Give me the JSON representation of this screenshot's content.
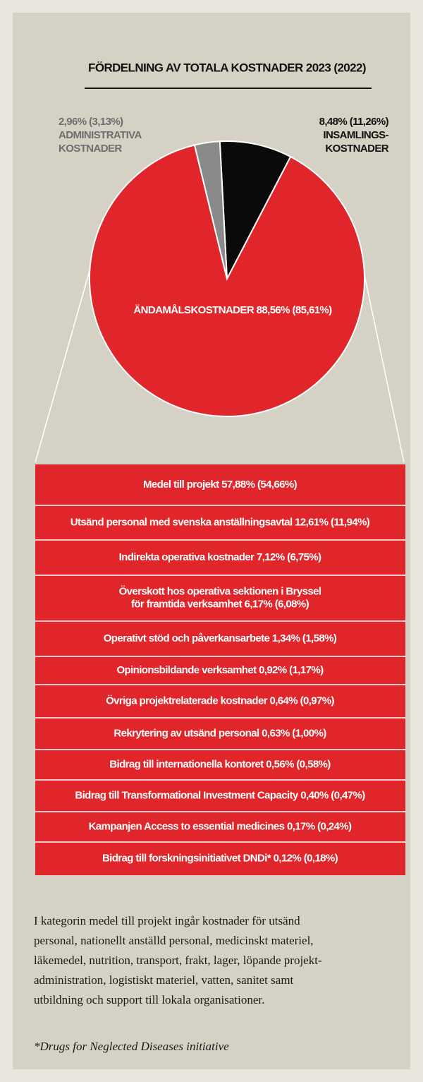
{
  "chart_data": {
    "type": "pie",
    "title": "FÖRDELNING AV TOTALA KOSTNADER 2023 (2022)",
    "categories": [
      [
        "INSAMLINGS-",
        "KOSTNADER"
      ],
      [
        "ÄNDAMÅLSKOSTNADER"
      ],
      [
        "ADMINISTRATIVA",
        "KOSTNADER"
      ]
    ],
    "values": [
      8.48,
      88.56,
      2.96
    ],
    "value_labels": [
      "8,48%",
      "88,56%",
      "2,96%"
    ],
    "prior_year_labels": [
      "(11,26%)",
      "(85,61%)",
      "(3,13%)"
    ],
    "colors": [
      "#0a0a0a",
      "#e0262b",
      "#8a8a8a"
    ]
  },
  "breakdown": {
    "rows": [
      [
        "Medel till projekt  57,88% (54,66%)"
      ],
      [
        "Utsänd personal med svenska anställningsavtal 12,61% (11,94%)"
      ],
      [
        "Indirekta operativa kostnader  7,12% (6,75%)"
      ],
      [
        "Överskott hos operativa sektionen i Bryssel",
        "för framtida verksamhet  6,17% (6,08%)"
      ],
      [
        "Operativt stöd och påverkansarbete  1,34% (1,58%)"
      ],
      [
        "Opinionsbildande verksamhet  0,92% (1,17%)"
      ],
      [
        "Övriga projektrelaterade kostnader 0,64% (0,97%)"
      ],
      [
        "Rekrytering av utsänd personal 0,63% (1,00%)"
      ],
      [
        "Bidrag till internationella kontoret  0,56% (0,58%)"
      ],
      [
        "Bidrag till Transformational Investment Capacity 0,40% (0,47%)"
      ],
      [
        "Kampanjen Access to essential medicines  0,17% (0,24%)"
      ],
      [
        "Bidrag till forskningsinitiativet DNDi* 0,12% (0,18%)"
      ]
    ]
  },
  "note": {
    "lines": [
      "I kategorin medel till projekt ingår kostnader för utsänd",
      "personal, nationellt anställd personal, medicinskt materiel,",
      "läkemedel, nutrition, transport, frakt, lager, löpande projekt-",
      "administration, logistiskt materiel, vatten, sanitet samt",
      " utbildning och support till lokala organisationer."
    ],
    "footnote": "*Drugs for Neglected Diseases initiative"
  }
}
